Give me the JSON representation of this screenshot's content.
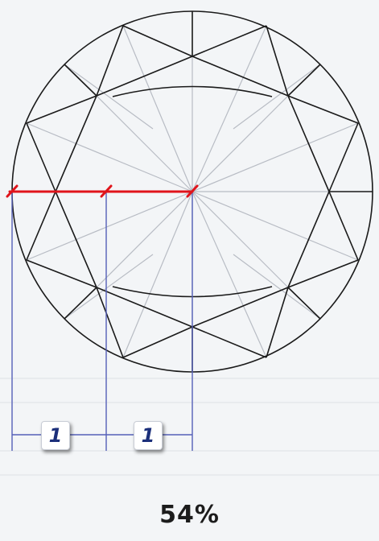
{
  "measure_labels": {
    "left": "1",
    "right": "1"
  },
  "table_percentage": "54%",
  "colors": {
    "outline": "#1a1a1a",
    "facet_shading": "#b8bcc4",
    "table_measure_line": "#e0141b",
    "guide_lines": "#5560b8",
    "label_text": "#1b2f7a",
    "background": "#f3f5f7"
  }
}
